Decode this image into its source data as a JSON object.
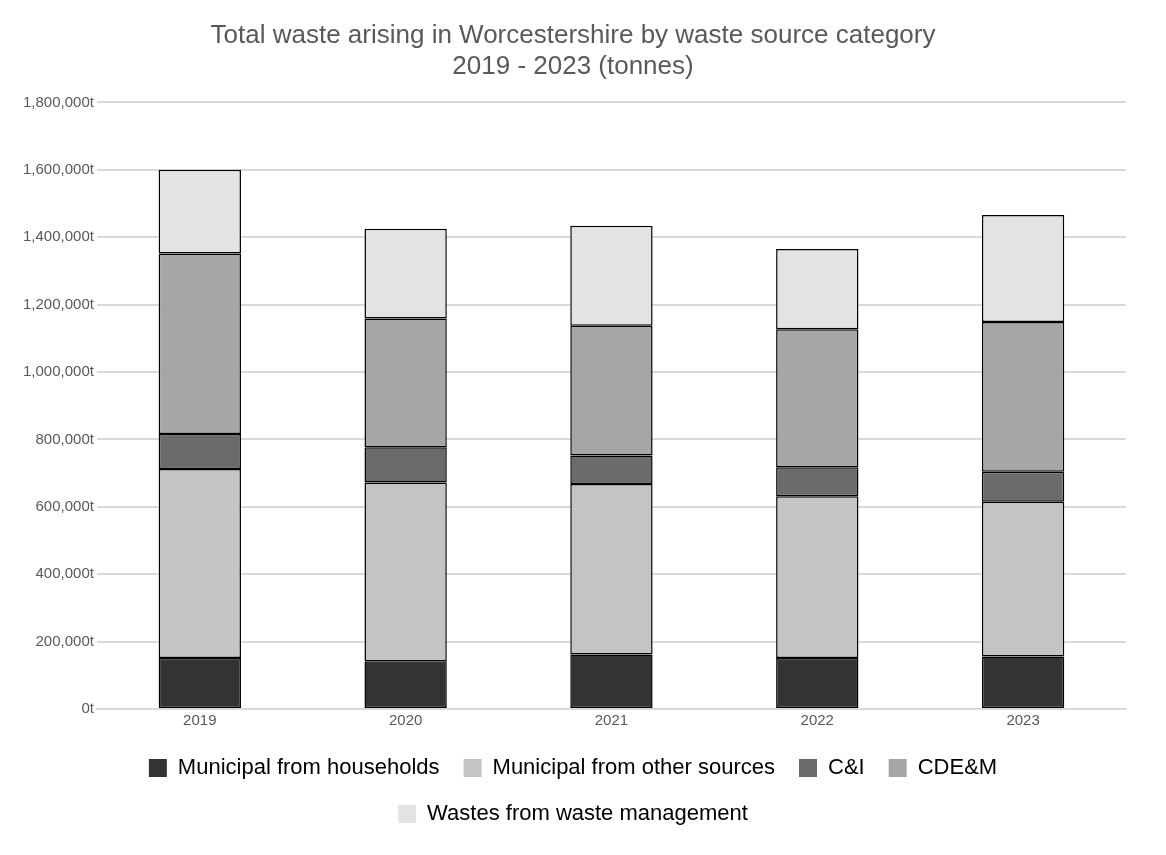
{
  "chart_data": {
    "type": "bar",
    "stacked": true,
    "title": "Total waste arising in Worcestershire by waste source category\n2019 - 2023 (tonnes)",
    "categories": [
      "2019",
      "2020",
      "2021",
      "2022",
      "2023"
    ],
    "series": [
      {
        "name": "Municipal from households",
        "color": "#333333",
        "values": [
          151000,
          142000,
          162000,
          151000,
          156000
        ]
      },
      {
        "name": "Municipal from other sources",
        "color": "#c4c4c4",
        "values": [
          561000,
          530000,
          506000,
          480000,
          459000
        ]
      },
      {
        "name": "C&I",
        "color": "#6b6b6b",
        "values": [
          104000,
          105000,
          84000,
          86000,
          89000
        ]
      },
      {
        "name": "CDE&M",
        "color": "#a6a6a6",
        "values": [
          536000,
          382000,
          385000,
          410000,
          444000
        ]
      },
      {
        "name": "Wastes from waste management",
        "color": "#e3e3e3",
        "values": [
          248000,
          266000,
          297000,
          238000,
          318000
        ]
      }
    ],
    "ylim": [
      0,
      1800000
    ],
    "yticks": [
      {
        "value": 0,
        "label": "0t"
      },
      {
        "value": 200000,
        "label": "200,000t"
      },
      {
        "value": 400000,
        "label": "400,000t"
      },
      {
        "value": 600000,
        "label": "600,000t"
      },
      {
        "value": 800000,
        "label": "800,000t"
      },
      {
        "value": 1000000,
        "label": "1,000,000t"
      },
      {
        "value": 1200000,
        "label": "1,200,000t"
      },
      {
        "value": 1400000,
        "label": "1,400,000t"
      },
      {
        "value": 1600000,
        "label": "1,600,000t"
      },
      {
        "value": 1800000,
        "label": "1,800,000t"
      }
    ],
    "grid": "y",
    "legend": "bottom"
  }
}
